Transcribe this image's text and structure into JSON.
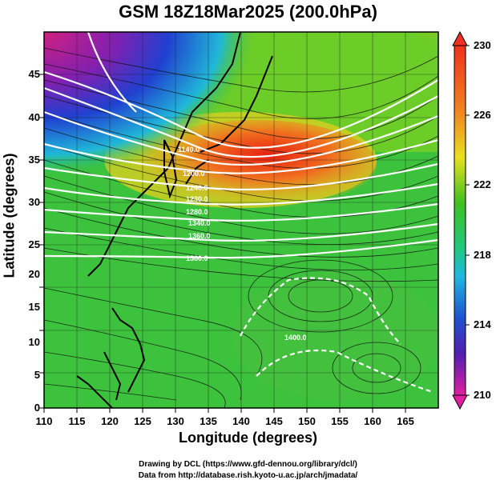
{
  "title": "GSM 18Z18Mar2025 (200.0hPa)",
  "xlabel": "Longitude (degrees)",
  "ylabel": "Latitude  (degrees)",
  "x_ticks": [
    "110",
    "115",
    "120",
    "125",
    "130",
    "135",
    "140",
    "145",
    "150",
    "155",
    "160",
    "165"
  ],
  "y_ticks": [
    "45",
    "40",
    "35",
    "30",
    "25",
    "20",
    "15",
    "10",
    "5",
    "0"
  ],
  "colorbar_ticks": [
    "230",
    "226",
    "222",
    "218",
    "214",
    "210"
  ],
  "credit_line_1": "Drawing by DCL (https://www.gfd-dennou.org/library/dcl/)",
  "credit_line_2": "Data from http://database.rish.kyoto-u.ac.jp/arch/jmadata/",
  "contour_labels": [
    "1140.0",
    "1200.0",
    "1240.0",
    "1230.0",
    "1280.0",
    "1340.0",
    "1360.0",
    "1380.0",
    "1400.0"
  ],
  "colors": {
    "magenta": "#e0207f",
    "blue": "#2030d0",
    "cyan": "#20c8d8",
    "green": "#30c030",
    "yellow": "#e8e020",
    "orange": "#f08020",
    "red": "#e02010"
  },
  "chart_data": {
    "type": "heatmap",
    "title": "GSM 18Z18Mar2025 (200.0hPa)",
    "xlabel": "Longitude (degrees)",
    "ylabel": "Latitude  (degrees)",
    "xlim": [
      110,
      170
    ],
    "ylim": [
      0,
      50
    ],
    "colorbar_range": [
      210,
      230
    ],
    "colormap": "magenta-blue-cyan-green-yellow-red",
    "overlays": [
      "temperature shading",
      "white geopotential contours",
      "black streamlines",
      "coastlines",
      "lat/lon grid"
    ],
    "grid": true
  }
}
